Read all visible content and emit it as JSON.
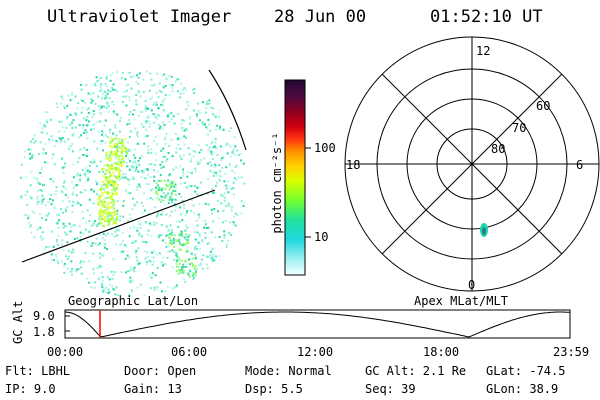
{
  "header": {
    "instrument": "Ultraviolet Imager",
    "date": "28 Jun 00",
    "time": "01:52:10 UT"
  },
  "colorbar": {
    "unit_label": "photon cm⁻²s⁻¹",
    "scale": "log",
    "ticks": [
      "100",
      "10"
    ],
    "colors": [
      "#2a0a3a",
      "#8a0020",
      "#c80010",
      "#ff3010",
      "#ff8a00",
      "#ffd000",
      "#d8ff00",
      "#80ff20",
      "#20e0a0",
      "#20d8e0",
      "#a0f0f0",
      "#ffffff"
    ]
  },
  "polar_plot": {
    "mlt_labels": [
      "12",
      "18",
      "6",
      "0"
    ],
    "mlat_labels": [
      "60",
      "70",
      "80"
    ]
  },
  "map_labels": {
    "left": "Geographic Lat/Lon",
    "right": "Apex MLat/MLT"
  },
  "orbit_plot": {
    "ylabel": "GC Alt",
    "yticks": [
      "9.0",
      "1.8"
    ],
    "xticks": [
      "00:00",
      "06:00",
      "12:00",
      "18:00",
      "23:59"
    ],
    "current_time_marker": "01:52",
    "marker_color": "#ff0000"
  },
  "info": {
    "row1": {
      "flt": "Flt: LBHL",
      "door": "Door: Open",
      "mode": "Mode: Normal",
      "gcalt": "GC Alt: 2.1 Re",
      "glat": "GLat: -74.5"
    },
    "row2": {
      "ip": "IP:  9.0",
      "gain": "Gain: 13",
      "dsp": "Dsp:    5.5",
      "seq": "Seq: 39",
      "glon": "GLon:  38.9"
    }
  }
}
